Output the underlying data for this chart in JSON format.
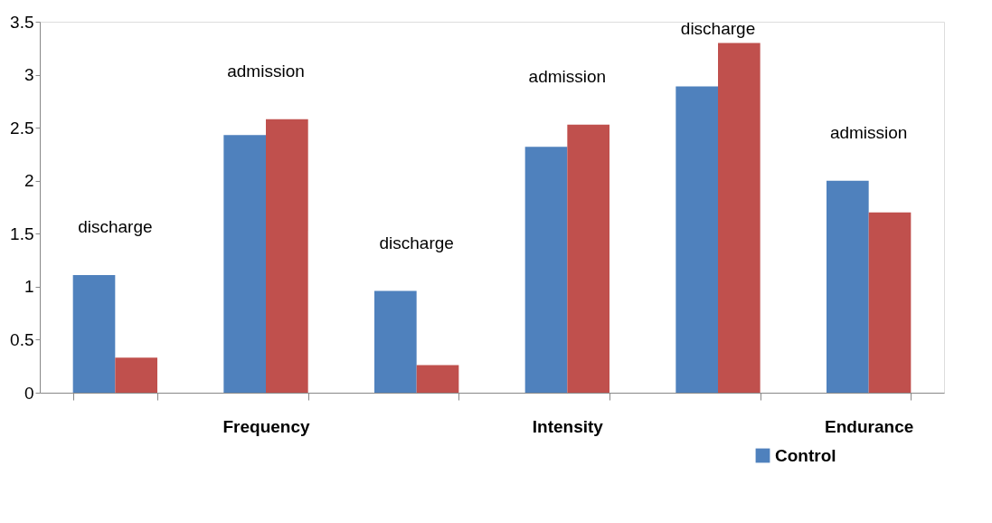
{
  "chart_data": {
    "type": "bar",
    "categories": [
      null,
      "Frequency",
      null,
      "Intensity",
      null,
      "Endurance"
    ],
    "series": [
      {
        "name": "Control",
        "color": "#4f81bd",
        "values": [
          1.11,
          2.43,
          0.96,
          2.32,
          2.89,
          2.0
        ]
      },
      {
        "color": "#c0504d",
        "values": [
          0.33,
          2.58,
          0.26,
          2.53,
          3.3,
          1.7
        ]
      }
    ],
    "ylim": [
      0,
      3.5
    ],
    "yticks": [
      0,
      0.5,
      1,
      1.5,
      2,
      2.5,
      3,
      3.5
    ],
    "annotations": [
      "discharge",
      "admission",
      "discharge",
      "admission",
      "discharge",
      "admission"
    ],
    "grid": false,
    "legend": "bottom right"
  }
}
